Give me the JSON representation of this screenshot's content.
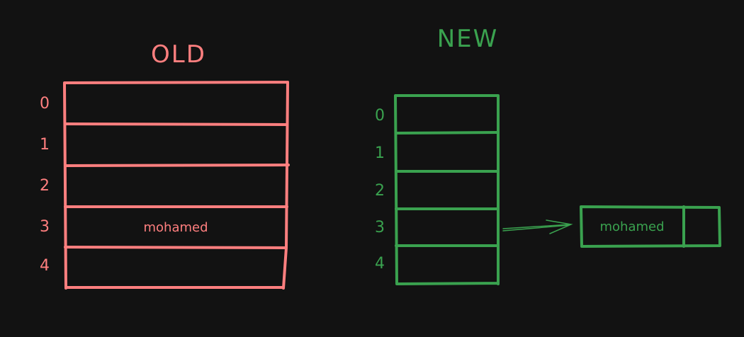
{
  "colors": {
    "background": "#121212",
    "old": "#ff7f7f",
    "new": "#3aa24f"
  },
  "old": {
    "title": "OLD",
    "rows": [
      {
        "index": "0",
        "value": ""
      },
      {
        "index": "1",
        "value": ""
      },
      {
        "index": "2",
        "value": ""
      },
      {
        "index": "3",
        "value": "mohamed"
      },
      {
        "index": "4",
        "value": ""
      }
    ]
  },
  "new": {
    "title": "NEW",
    "rows": [
      {
        "index": "0"
      },
      {
        "index": "1"
      },
      {
        "index": "2"
      },
      {
        "index": "3"
      },
      {
        "index": "4"
      }
    ],
    "node": {
      "value": "mohamed"
    }
  }
}
